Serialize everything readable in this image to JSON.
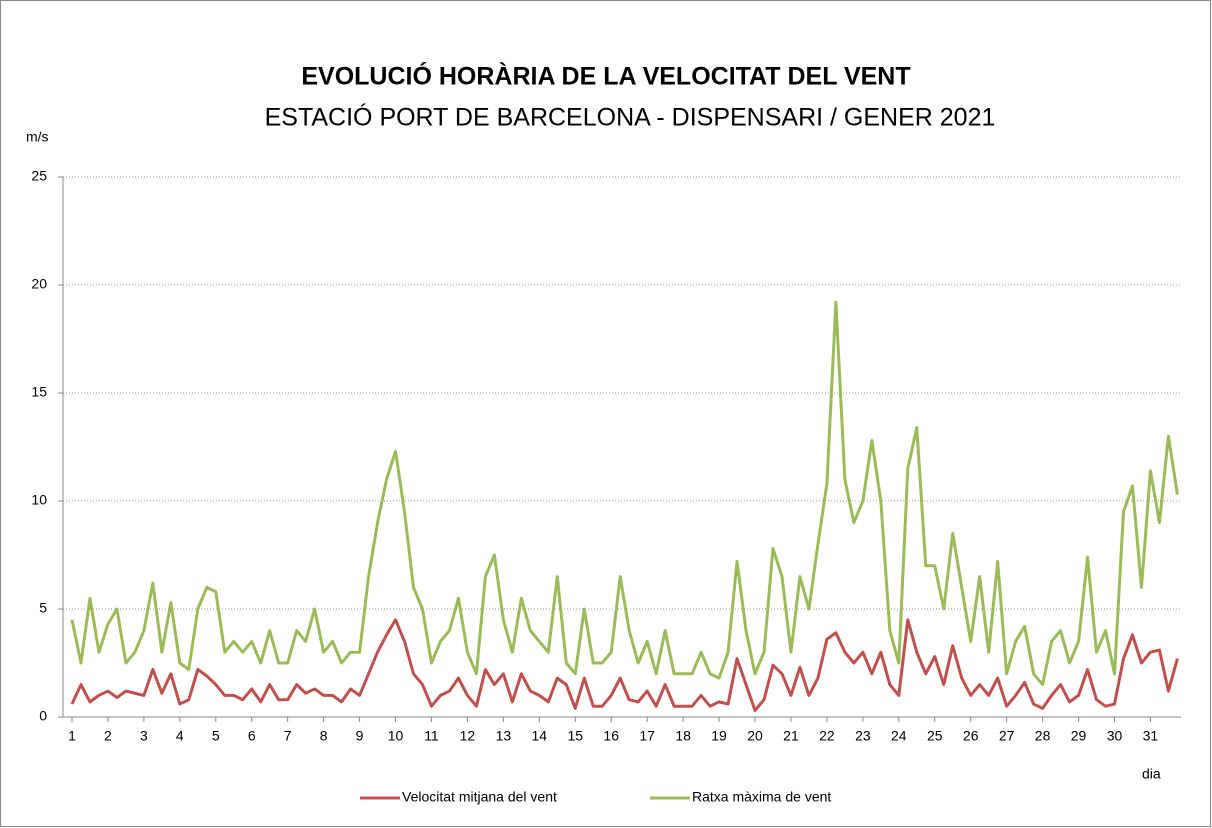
{
  "chart_data": {
    "type": "line",
    "title": "EVOLUCIÓ HORÀRIA DE LA VELOCITAT DEL VENT",
    "subtitle": "ESTACIÓ PORT DE BARCELONA - DISPENSARI / GENER 2021",
    "ylabel": "m/s",
    "xlabel": "dia",
    "x": [
      1,
      1.25,
      1.5,
      1.75,
      2,
      2.25,
      2.5,
      2.75,
      3,
      3.25,
      3.5,
      3.75,
      4,
      4.25,
      4.5,
      4.75,
      5,
      5.25,
      5.5,
      5.75,
      6,
      6.25,
      6.5,
      6.75,
      7,
      7.25,
      7.5,
      7.75,
      8,
      8.25,
      8.5,
      8.75,
      9,
      9.25,
      9.5,
      9.75,
      10,
      10.25,
      10.5,
      10.75,
      11,
      11.25,
      11.5,
      11.75,
      12,
      12.25,
      12.5,
      12.75,
      13,
      13.25,
      13.5,
      13.75,
      14,
      14.25,
      14.5,
      14.75,
      15,
      15.25,
      15.5,
      15.75,
      16,
      16.25,
      16.5,
      16.75,
      17,
      17.25,
      17.5,
      17.75,
      18,
      18.25,
      18.5,
      18.75,
      19,
      19.25,
      19.5,
      19.75,
      20,
      20.25,
      20.5,
      20.75,
      21,
      21.25,
      21.5,
      21.75,
      22,
      22.25,
      22.5,
      22.75,
      23,
      23.25,
      23.5,
      23.75,
      24,
      24.25,
      24.5,
      24.75,
      25,
      25.25,
      25.5,
      25.75,
      26,
      26.25,
      26.5,
      26.75,
      27,
      27.25,
      27.5,
      27.75,
      28,
      28.25,
      28.5,
      28.75,
      29,
      29.25,
      29.5,
      29.75,
      30,
      30.25,
      30.5,
      30.75,
      31,
      31.25,
      31.5,
      31.75
    ],
    "series": [
      {
        "name": "Velocitat mitjana del vent",
        "color": "#c0504d",
        "values": [
          0.6,
          1.5,
          0.7,
          1,
          1.2,
          0.9,
          1.2,
          1.1,
          1,
          2.2,
          1.1,
          2,
          0.6,
          0.8,
          2.2,
          1.9,
          1.5,
          1,
          1,
          0.8,
          1.3,
          0.7,
          1.5,
          0.8,
          0.8,
          1.5,
          1.1,
          1.3,
          1,
          1,
          0.7,
          1.3,
          1,
          2,
          3,
          3.8,
          4.5,
          3.5,
          2,
          1.5,
          0.5,
          1,
          1.2,
          1.8,
          1,
          0.5,
          2.2,
          1.5,
          2,
          0.7,
          2,
          1.2,
          1,
          0.7,
          1.8,
          1.5,
          0.4,
          1.8,
          0.5,
          0.5,
          1,
          1.8,
          0.8,
          0.7,
          1.2,
          0.5,
          1.5,
          0.5,
          0.5,
          0.5,
          1,
          0.5,
          0.7,
          0.6,
          2.7,
          1.5,
          0.3,
          0.8,
          2.4,
          2,
          1,
          2.3,
          1,
          1.8,
          3.6,
          3.9,
          3,
          2.5,
          3,
          2,
          3,
          1.5,
          1,
          4.5,
          3,
          2,
          2.8,
          1.5,
          3.3,
          1.8,
          1,
          1.5,
          1,
          1.8,
          0.5,
          1,
          1.6,
          0.6,
          0.4,
          1,
          1.5,
          0.7,
          1,
          2.2,
          0.8,
          0.5,
          0.6,
          2.7,
          3.8,
          2.5,
          3,
          3.1,
          1.2,
          2.7
        ]
      },
      {
        "name": "Ratxa màxima de vent",
        "color": "#9bbb59",
        "values": [
          4.5,
          2.5,
          5.5,
          3,
          4.3,
          5,
          2.5,
          3,
          4,
          6.2,
          3,
          5.3,
          2.5,
          2.2,
          5,
          6,
          5.8,
          3,
          3.5,
          3,
          3.5,
          2.5,
          4,
          2.5,
          2.5,
          4,
          3.5,
          5,
          3,
          3.5,
          2.5,
          3,
          3,
          6.5,
          9,
          11,
          12.3,
          9.5,
          6,
          5,
          2.5,
          3.5,
          4,
          5.5,
          3,
          2,
          6.5,
          7.5,
          4.5,
          3,
          5.5,
          4,
          3.5,
          3,
          6.5,
          2.5,
          2,
          5,
          2.5,
          2.5,
          3,
          6.5,
          4,
          2.5,
          3.5,
          2,
          4,
          2,
          2,
          2,
          3,
          2,
          1.8,
          3,
          7.2,
          4,
          2,
          3,
          7.8,
          6.5,
          3,
          6.5,
          5,
          8,
          10.8,
          19.2,
          11,
          9,
          10,
          12.8,
          10,
          4,
          2.5,
          11.5,
          13.4,
          7,
          7,
          5,
          8.5,
          6,
          3.5,
          6.5,
          3,
          7.2,
          2,
          3.5,
          4.2,
          2,
          1.5,
          3.5,
          4,
          2.5,
          3.5,
          7.4,
          3,
          4,
          2,
          9.5,
          10.7,
          6,
          11.4,
          9,
          13,
          10.3
        ]
      }
    ],
    "xlim": [
      0.75,
      31.85
    ],
    "xticks": [
      1,
      2,
      3,
      4,
      5,
      6,
      7,
      8,
      9,
      10,
      11,
      12,
      13,
      14,
      15,
      16,
      17,
      18,
      19,
      20,
      21,
      22,
      23,
      24,
      25,
      26,
      27,
      28,
      29,
      30,
      31
    ],
    "ylim": [
      0,
      25
    ],
    "yticks": [
      0,
      5,
      10,
      15,
      20,
      25
    ],
    "grid": true
  }
}
